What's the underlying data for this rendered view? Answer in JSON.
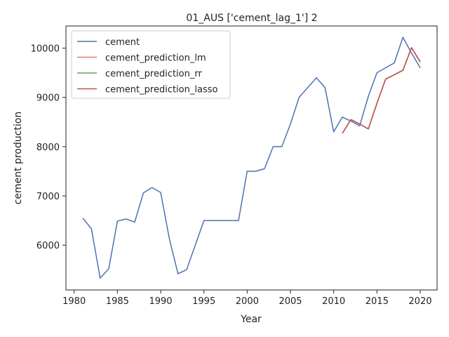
{
  "chart_data": {
    "type": "line",
    "title": "01_AUS ['cement_lag_1'] 2",
    "xlabel": "Year",
    "ylabel": "cement production",
    "xlim": [
      1979.05,
      2021.95
    ],
    "ylim": [
      5090,
      10450
    ],
    "xticks": [
      1980,
      1985,
      1990,
      1995,
      2000,
      2005,
      2010,
      2015,
      2020
    ],
    "yticks": [
      6000,
      7000,
      8000,
      9000,
      10000
    ],
    "grid": false,
    "legend_position": "top-left",
    "series": [
      {
        "name": "cement",
        "color": "#4c72b0",
        "x": [
          1981,
          1982,
          1983,
          1984,
          1985,
          1986,
          1987,
          1988,
          1989,
          1990,
          1991,
          1992,
          1993,
          1994,
          1995,
          1996,
          1997,
          1998,
          1999,
          2000,
          2001,
          2002,
          2003,
          2004,
          2005,
          2006,
          2007,
          2008,
          2009,
          2010,
          2011,
          2012,
          2013,
          2014,
          2015,
          2016,
          2017,
          2018,
          2019,
          2020
        ],
        "y": [
          6550,
          6330,
          5330,
          5520,
          6490,
          6530,
          6470,
          7060,
          7170,
          7070,
          6130,
          5420,
          5500,
          6000,
          6500,
          6500,
          6500,
          6500,
          6500,
          7500,
          7500,
          7550,
          8000,
          8000,
          8460,
          9000,
          9200,
          9400,
          9200,
          8300,
          8600,
          8520,
          8420,
          9020,
          9500,
          9600,
          9700,
          10220,
          9900,
          9600
        ]
      },
      {
        "name": "cement_prediction_lm",
        "color": "#dd8452",
        "x": [
          2011,
          2012,
          2013,
          2014,
          2015,
          2016,
          2017,
          2018,
          2019,
          2020
        ],
        "y": [
          8270,
          8550,
          8460,
          8360,
          8880,
          9370,
          9460,
          9550,
          10010,
          9720
        ]
      },
      {
        "name": "cement_prediction_rr",
        "color": "#55a868",
        "x": [
          2011,
          2012,
          2013,
          2014,
          2015,
          2016,
          2017,
          2018,
          2019,
          2020
        ],
        "y": [
          8270,
          8550,
          8460,
          8360,
          8880,
          9370,
          9460,
          9550,
          10010,
          9720
        ]
      },
      {
        "name": "cement_prediction_lasso",
        "color": "#c44e52",
        "x": [
          2011,
          2012,
          2013,
          2014,
          2015,
          2016,
          2017,
          2018,
          2019,
          2020
        ],
        "y": [
          8270,
          8550,
          8460,
          8360,
          8880,
          9370,
          9460,
          9550,
          10010,
          9720
        ]
      }
    ]
  }
}
